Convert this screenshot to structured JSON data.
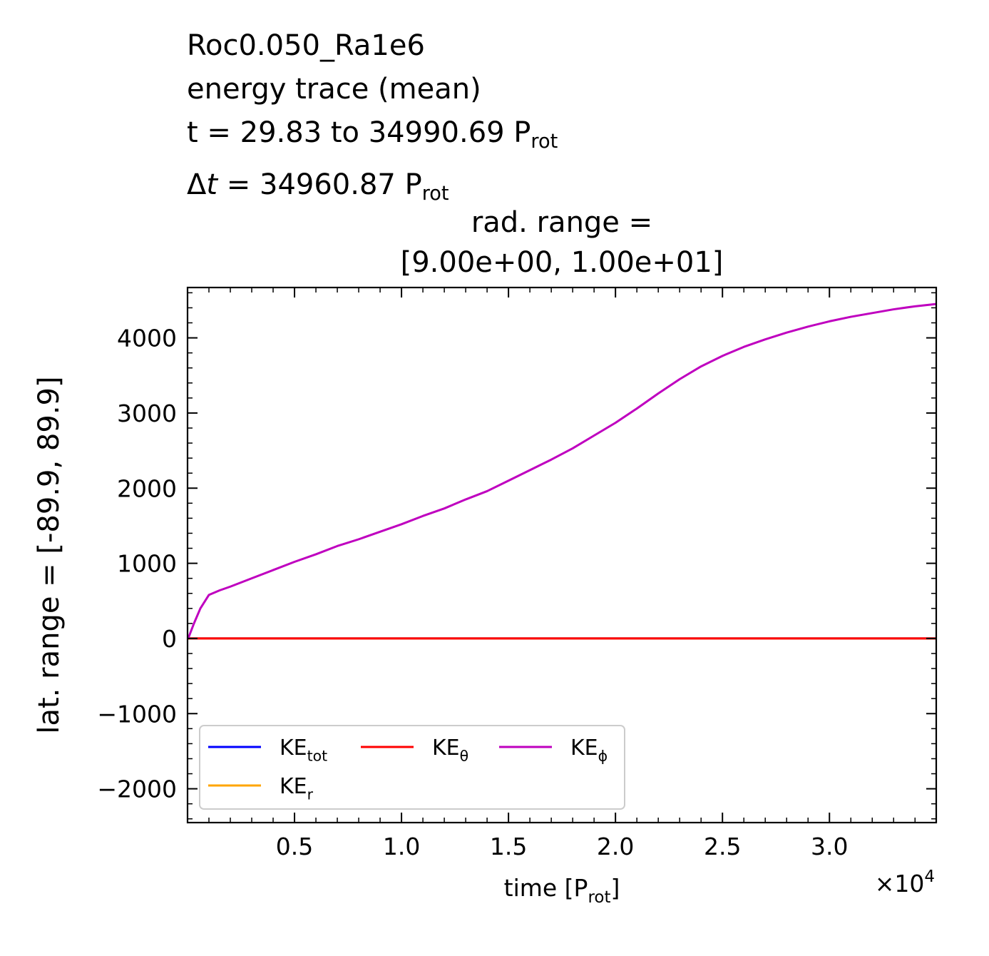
{
  "header": {
    "line1": "Roc0.050_Ra1e6",
    "line2": "energy trace (mean)",
    "line3_pre": "t = 29.83 to 34990.69 P",
    "line3_sub": "rot",
    "line4_pre": "Δ",
    "line4_italic": "t",
    "line4_post": " = 34960.87 P",
    "line4_sub": "rot"
  },
  "subtitle": {
    "line1": "rad. range =",
    "line2": "[9.00e+00, 1.00e+01]"
  },
  "chart_data": {
    "type": "line",
    "xlabel_pre": "time [P",
    "xlabel_sub": "rot",
    "xlabel_post": "]",
    "ylabel": "lat. range = [-89.9, 89.9]",
    "xlim": [
      0,
      34990.69
    ],
    "ylim": [
      -2450,
      4670
    ],
    "x_offset_text": "×10",
    "x_offset_exp": "4",
    "x_ticks": [
      5000,
      10000,
      15000,
      20000,
      25000,
      30000
    ],
    "x_tick_labels": [
      "0.5",
      "1.0",
      "1.5",
      "2.0",
      "2.5",
      "3.0"
    ],
    "y_ticks": [
      -2000,
      -1000,
      0,
      1000,
      2000,
      3000,
      4000
    ],
    "y_tick_labels": [
      "−2000",
      "−1000",
      "0",
      "1000",
      "2000",
      "3000",
      "4000"
    ],
    "legend_position": "lower-left",
    "legend_ncol": 3,
    "grid": false,
    "series": [
      {
        "name": "KE",
        "name_sub": "tot",
        "color": "#0000ff",
        "x": [
          0,
          34990.69
        ],
        "y": [
          0,
          0
        ]
      },
      {
        "name": "KE",
        "name_sub": "r",
        "color": "#ffa500",
        "x": [
          0,
          34990.69
        ],
        "y": [
          0,
          0
        ]
      },
      {
        "name": "KE",
        "name_sub": "θ",
        "color": "#ff0000",
        "x": [
          0,
          34990.69
        ],
        "y": [
          0,
          0
        ]
      },
      {
        "name": "KE",
        "name_sub": "ϕ",
        "color": "#bf00bf",
        "x": [
          29.83,
          300,
          600,
          1000,
          1500,
          2000,
          3000,
          4000,
          5000,
          6000,
          7000,
          8000,
          9000,
          10000,
          11000,
          12000,
          13000,
          14000,
          15000,
          16000,
          17000,
          18000,
          19000,
          20000,
          21000,
          22000,
          23000,
          24000,
          25000,
          26000,
          27000,
          28000,
          29000,
          30000,
          31000,
          32000,
          33000,
          34000,
          34990.69
        ],
        "y": [
          0,
          200,
          400,
          580,
          640,
          690,
          800,
          910,
          1020,
          1120,
          1230,
          1320,
          1420,
          1520,
          1630,
          1730,
          1850,
          1960,
          2100,
          2240,
          2380,
          2530,
          2700,
          2870,
          3060,
          3260,
          3450,
          3620,
          3760,
          3880,
          3980,
          4070,
          4150,
          4220,
          4280,
          4330,
          4380,
          4420,
          4450
        ]
      }
    ]
  }
}
